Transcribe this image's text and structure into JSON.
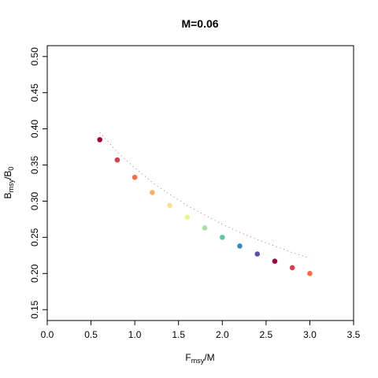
{
  "chart_data": {
    "type": "scatter",
    "title": "M=0.06",
    "xlabel": {
      "main": "F",
      "sub": "msy",
      "suffix": "/M"
    },
    "ylabel": {
      "main": "B",
      "sub": "msy",
      "mid": "/B",
      "sub2": "0"
    },
    "xlim": [
      0,
      3.5
    ],
    "ylim": [
      0.135,
      0.515
    ],
    "xticks": [
      0.0,
      0.5,
      1.0,
      1.5,
      2.0,
      2.5,
      3.0,
      3.5
    ],
    "xtick_labels": [
      "0.0",
      "0.5",
      "1.0",
      "1.5",
      "2.0",
      "2.5",
      "3.0",
      "3.5"
    ],
    "yticks": [
      0.15,
      0.2,
      0.25,
      0.3,
      0.35,
      0.4,
      0.45,
      0.5
    ],
    "ytick_labels": [
      "0.15",
      "0.20",
      "0.25",
      "0.30",
      "0.35",
      "0.40",
      "0.45",
      "0.50"
    ],
    "grid": false,
    "points": [
      {
        "x": 0.6,
        "y": 0.385,
        "color": "#9e0142"
      },
      {
        "x": 0.8,
        "y": 0.357,
        "color": "#d53e4f"
      },
      {
        "x": 1.0,
        "y": 0.333,
        "color": "#f46d43"
      },
      {
        "x": 1.2,
        "y": 0.312,
        "color": "#fdae61"
      },
      {
        "x": 1.4,
        "y": 0.294,
        "color": "#fee08b"
      },
      {
        "x": 1.6,
        "y": 0.278,
        "color": "#e6f598"
      },
      {
        "x": 1.8,
        "y": 0.263,
        "color": "#abdda4"
      },
      {
        "x": 2.0,
        "y": 0.25,
        "color": "#66c2a5"
      },
      {
        "x": 2.2,
        "y": 0.238,
        "color": "#3288bd"
      },
      {
        "x": 2.4,
        "y": 0.227,
        "color": "#5e4fa2"
      },
      {
        "x": 2.6,
        "y": 0.217,
        "color": "#9e0142"
      },
      {
        "x": 2.8,
        "y": 0.208,
        "color": "#d53e4f"
      },
      {
        "x": 3.0,
        "y": 0.2,
        "color": "#f46d43"
      }
    ],
    "trend": {
      "x": [
        0.6,
        0.8,
        1.0,
        1.2,
        1.4,
        1.6,
        1.8,
        2.0,
        2.2,
        2.4,
        2.6,
        2.8,
        3.0
      ],
      "y": [
        0.395,
        0.368,
        0.346,
        0.326,
        0.309,
        0.294,
        0.281,
        0.268,
        0.257,
        0.247,
        0.238,
        0.229,
        0.221
      ],
      "color": "#c8102e"
    }
  }
}
